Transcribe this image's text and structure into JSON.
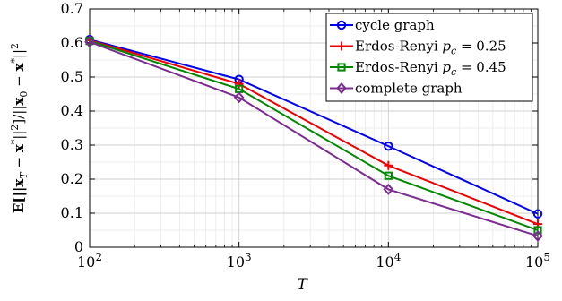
{
  "chart_data": {
    "type": "line",
    "xscale": "log",
    "x": [
      100,
      1000,
      10000,
      100000
    ],
    "xlim": [
      100,
      100000
    ],
    "ylim": [
      0,
      0.7
    ],
    "x_ticks": [
      {
        "base": "10",
        "exp": "2"
      },
      {
        "base": "10",
        "exp": "3"
      },
      {
        "base": "10",
        "exp": "4"
      },
      {
        "base": "10",
        "exp": "5"
      }
    ],
    "y_ticks": [
      {
        "value": 0,
        "label": "0"
      },
      {
        "value": 0.1,
        "label": "0.1"
      },
      {
        "value": 0.2,
        "label": "0.2"
      },
      {
        "value": 0.3,
        "label": "0.3"
      },
      {
        "value": 0.4,
        "label": "0.4"
      },
      {
        "value": 0.5,
        "label": "0.5"
      },
      {
        "value": 0.6,
        "label": "0.6"
      },
      {
        "value": 0.7,
        "label": "0.7"
      }
    ],
    "xlabel": "T",
    "ylabel": "E[||x_T − x*||²]/||x_0 − x*||²",
    "grid": true,
    "minor_grid": true,
    "legend_position": "top-right",
    "series": [
      {
        "name": "cycle graph",
        "color": "#0000ee",
        "marker": "circle",
        "values": [
          0.61,
          0.493,
          0.297,
          0.098
        ]
      },
      {
        "name": "Erdos-Renyi p_c = 0.25",
        "name_main": "Erdos-Renyi ",
        "name_sym": "p",
        "name_sub": "c",
        "name_tail": " = 0.25",
        "color": "#ee0000",
        "marker": "plus",
        "values": [
          0.608,
          0.48,
          0.24,
          0.068
        ]
      },
      {
        "name": "Erdos-Renyi p_c = 0.45",
        "name_main": "Erdos-Renyi ",
        "name_sym": "p",
        "name_sub": "c",
        "name_tail": " = 0.45",
        "color": "#008800",
        "marker": "square",
        "values": [
          0.606,
          0.465,
          0.21,
          0.05
        ]
      },
      {
        "name": "complete graph",
        "color": "#7b2c8f",
        "marker": "diamond",
        "values": [
          0.603,
          0.44,
          0.17,
          0.033
        ]
      }
    ]
  }
}
